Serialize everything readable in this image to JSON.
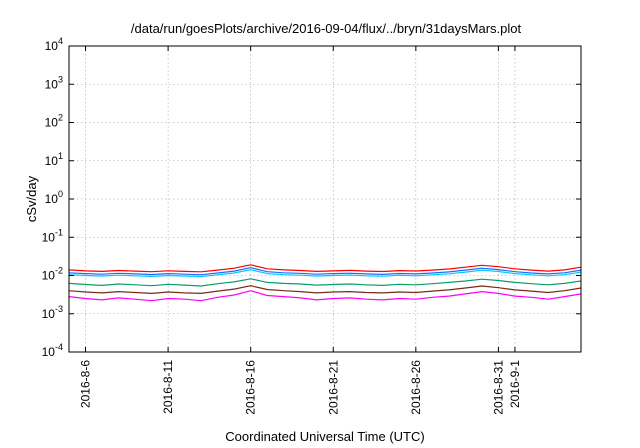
{
  "chart_data": {
    "type": "line",
    "title": "/data/run/goesPlots/archive/2016-09-04/flux/../bryn/31daysMars.plot",
    "xlabel": "Coordinated Universal Time (UTC)",
    "ylabel": "cSv/day",
    "yscale": "log",
    "ylim": [
      0.0001,
      10000
    ],
    "xlim": [
      "2016-08-05",
      "2016-09-05"
    ],
    "y_ticks": [
      {
        "base": "10",
        "exp": "-4",
        "value": 0.0001
      },
      {
        "base": "10",
        "exp": "-3",
        "value": 0.001
      },
      {
        "base": "10",
        "exp": "-2",
        "value": 0.01
      },
      {
        "base": "10",
        "exp": "-1",
        "value": 0.1
      },
      {
        "base": "10",
        "exp": "0",
        "value": 1
      },
      {
        "base": "10",
        "exp": "1",
        "value": 10
      },
      {
        "base": "10",
        "exp": "2",
        "value": 100
      },
      {
        "base": "10",
        "exp": "3",
        "value": 1000
      },
      {
        "base": "10",
        "exp": "4",
        "value": 10000
      }
    ],
    "x_ticks": [
      {
        "label": "2016-8-6",
        "date": "2016-08-06"
      },
      {
        "label": "2016-8-11",
        "date": "2016-08-11"
      },
      {
        "label": "2016-8-16",
        "date": "2016-08-16"
      },
      {
        "label": "2016-8-21",
        "date": "2016-08-21"
      },
      {
        "label": "2016-8-26",
        "date": "2016-08-26"
      },
      {
        "label": "2016-8-31",
        "date": "2016-08-31"
      },
      {
        "label": "2016-9-1",
        "date": "2016-09-01"
      }
    ],
    "grid": true,
    "x": [
      "2016-08-05",
      "2016-08-06",
      "2016-08-07",
      "2016-08-08",
      "2016-08-09",
      "2016-08-10",
      "2016-08-11",
      "2016-08-12",
      "2016-08-13",
      "2016-08-14",
      "2016-08-15",
      "2016-08-16",
      "2016-08-17",
      "2016-08-18",
      "2016-08-19",
      "2016-08-20",
      "2016-08-21",
      "2016-08-22",
      "2016-08-23",
      "2016-08-24",
      "2016-08-25",
      "2016-08-26",
      "2016-08-27",
      "2016-08-28",
      "2016-08-29",
      "2016-08-30",
      "2016-08-31",
      "2016-09-01",
      "2016-09-02",
      "2016-09-03",
      "2016-09-04",
      "2016-09-05"
    ],
    "series": [
      {
        "color": "#ff0000",
        "values": [
          0.014,
          0.0132,
          0.0128,
          0.0135,
          0.013,
          0.0126,
          0.0133,
          0.0128,
          0.0125,
          0.0138,
          0.0155,
          0.019,
          0.015,
          0.014,
          0.0135,
          0.0128,
          0.0132,
          0.0136,
          0.013,
          0.0127,
          0.0134,
          0.0131,
          0.0138,
          0.0148,
          0.0165,
          0.0185,
          0.017,
          0.015,
          0.0138,
          0.013,
          0.014,
          0.0165
        ]
      },
      {
        "color": "#1a6cff",
        "values": [
          0.0118,
          0.0112,
          0.0108,
          0.0114,
          0.011,
          0.0106,
          0.0112,
          0.0108,
          0.0105,
          0.0116,
          0.013,
          0.016,
          0.0126,
          0.0118,
          0.0114,
          0.0108,
          0.0112,
          0.0115,
          0.011,
          0.0107,
          0.0113,
          0.011,
          0.0116,
          0.0124,
          0.0138,
          0.0155,
          0.0143,
          0.0126,
          0.0116,
          0.011,
          0.0118,
          0.0138
        ]
      },
      {
        "color": "#00ccff",
        "values": [
          0.0105,
          0.01,
          0.0097,
          0.0102,
          0.0098,
          0.0095,
          0.01,
          0.0097,
          0.0094,
          0.0104,
          0.0116,
          0.0142,
          0.0112,
          0.0105,
          0.0102,
          0.0097,
          0.01,
          0.0103,
          0.0098,
          0.0096,
          0.0101,
          0.0098,
          0.0104,
          0.0111,
          0.0123,
          0.0138,
          0.0127,
          0.0112,
          0.0104,
          0.0098,
          0.0105,
          0.0123
        ]
      },
      {
        "color": "#0a9e6a",
        "values": [
          0.0062,
          0.0058,
          0.0055,
          0.006,
          0.0057,
          0.0054,
          0.0059,
          0.0056,
          0.0053,
          0.0061,
          0.0068,
          0.0082,
          0.0066,
          0.0062,
          0.006,
          0.0056,
          0.0058,
          0.006,
          0.0057,
          0.0055,
          0.0059,
          0.0057,
          0.0061,
          0.0066,
          0.0072,
          0.008,
          0.0074,
          0.0066,
          0.0061,
          0.0057,
          0.0062,
          0.0072
        ]
      },
      {
        "color": "#7a2a18",
        "values": [
          0.004,
          0.0037,
          0.0035,
          0.0038,
          0.0036,
          0.0034,
          0.0037,
          0.0035,
          0.0034,
          0.0039,
          0.0044,
          0.0054,
          0.0043,
          0.004,
          0.0038,
          0.0035,
          0.0037,
          0.0038,
          0.0036,
          0.0035,
          0.0037,
          0.0036,
          0.0039,
          0.0042,
          0.0047,
          0.0053,
          0.0048,
          0.0042,
          0.0039,
          0.0036,
          0.004,
          0.0047
        ]
      },
      {
        "color": "#ff00ff",
        "values": [
          0.0028,
          0.0025,
          0.0023,
          0.0026,
          0.0024,
          0.0022,
          0.0025,
          0.0024,
          0.0022,
          0.0027,
          0.0031,
          0.004,
          0.003,
          0.0028,
          0.0026,
          0.0023,
          0.0025,
          0.0026,
          0.0024,
          0.0023,
          0.0025,
          0.0024,
          0.0027,
          0.0029,
          0.0033,
          0.0038,
          0.0034,
          0.0029,
          0.0027,
          0.0024,
          0.0028,
          0.0033
        ]
      }
    ]
  }
}
